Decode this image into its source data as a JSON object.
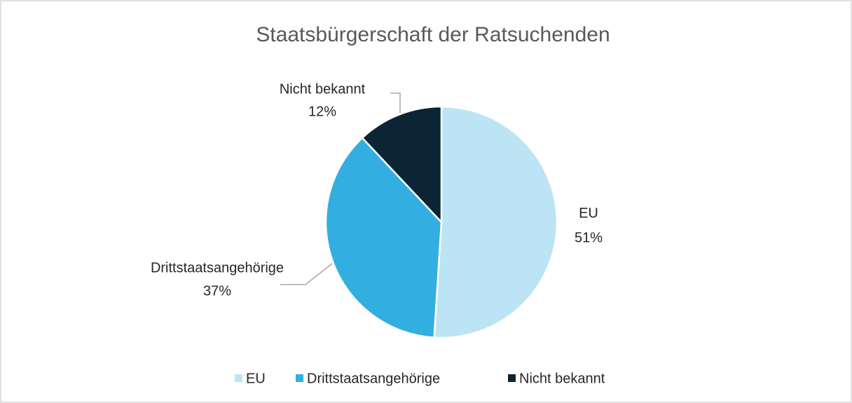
{
  "chart_data": {
    "type": "pie",
    "title": "Staatsbürgerschaft der Ratsuchenden",
    "categories": [
      "EU",
      "Drittstaatsangehörige",
      "Nicht bekannt"
    ],
    "values": [
      51,
      37,
      12
    ],
    "value_labels": [
      "51%",
      "37%",
      "12%"
    ],
    "colors": [
      "#bde4f4",
      "#33aee0",
      "#0b2535"
    ],
    "legend": "bottom"
  }
}
